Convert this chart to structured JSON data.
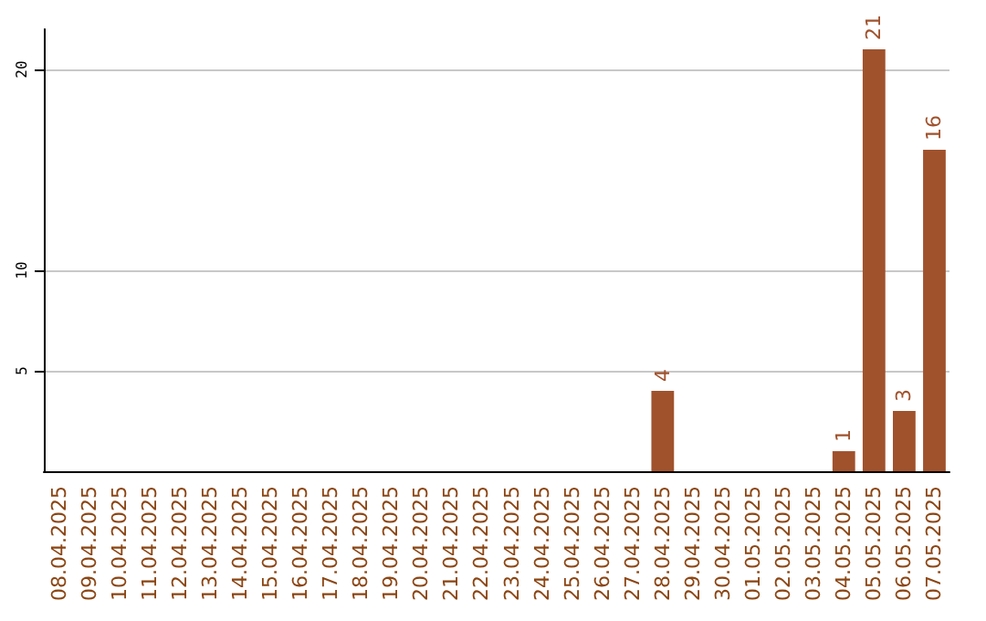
{
  "chart_data": {
    "type": "bar",
    "categories": [
      "08.04.2025",
      "09.04.2025",
      "10.04.2025",
      "11.04.2025",
      "12.04.2025",
      "13.04.2025",
      "14.04.2025",
      "15.04.2025",
      "16.04.2025",
      "17.04.2025",
      "18.04.2025",
      "19.04.2025",
      "20.04.2025",
      "21.04.2025",
      "22.04.2025",
      "23.04.2025",
      "24.04.2025",
      "25.04.2025",
      "26.04.2025",
      "27.04.2025",
      "28.04.2025",
      "29.04.2025",
      "30.04.2025",
      "01.05.2025",
      "02.05.2025",
      "03.05.2025",
      "04.05.2025",
      "05.05.2025",
      "06.05.2025",
      "07.05.2025"
    ],
    "values": [
      0,
      0,
      0,
      0,
      0,
      0,
      0,
      0,
      0,
      0,
      0,
      0,
      0,
      0,
      0,
      0,
      0,
      0,
      0,
      0,
      4,
      0,
      0,
      0,
      0,
      0,
      1,
      21,
      3,
      16
    ],
    "value_labels": [
      null,
      null,
      null,
      null,
      null,
      null,
      null,
      null,
      null,
      null,
      null,
      null,
      null,
      null,
      null,
      null,
      null,
      null,
      null,
      null,
      "4",
      null,
      null,
      null,
      null,
      null,
      "1",
      "21",
      "3",
      "16"
    ],
    "color": "#a0522d",
    "ylim": [
      0,
      22
    ],
    "yticks": [
      5,
      10,
      20
    ],
    "grid": "y"
  }
}
